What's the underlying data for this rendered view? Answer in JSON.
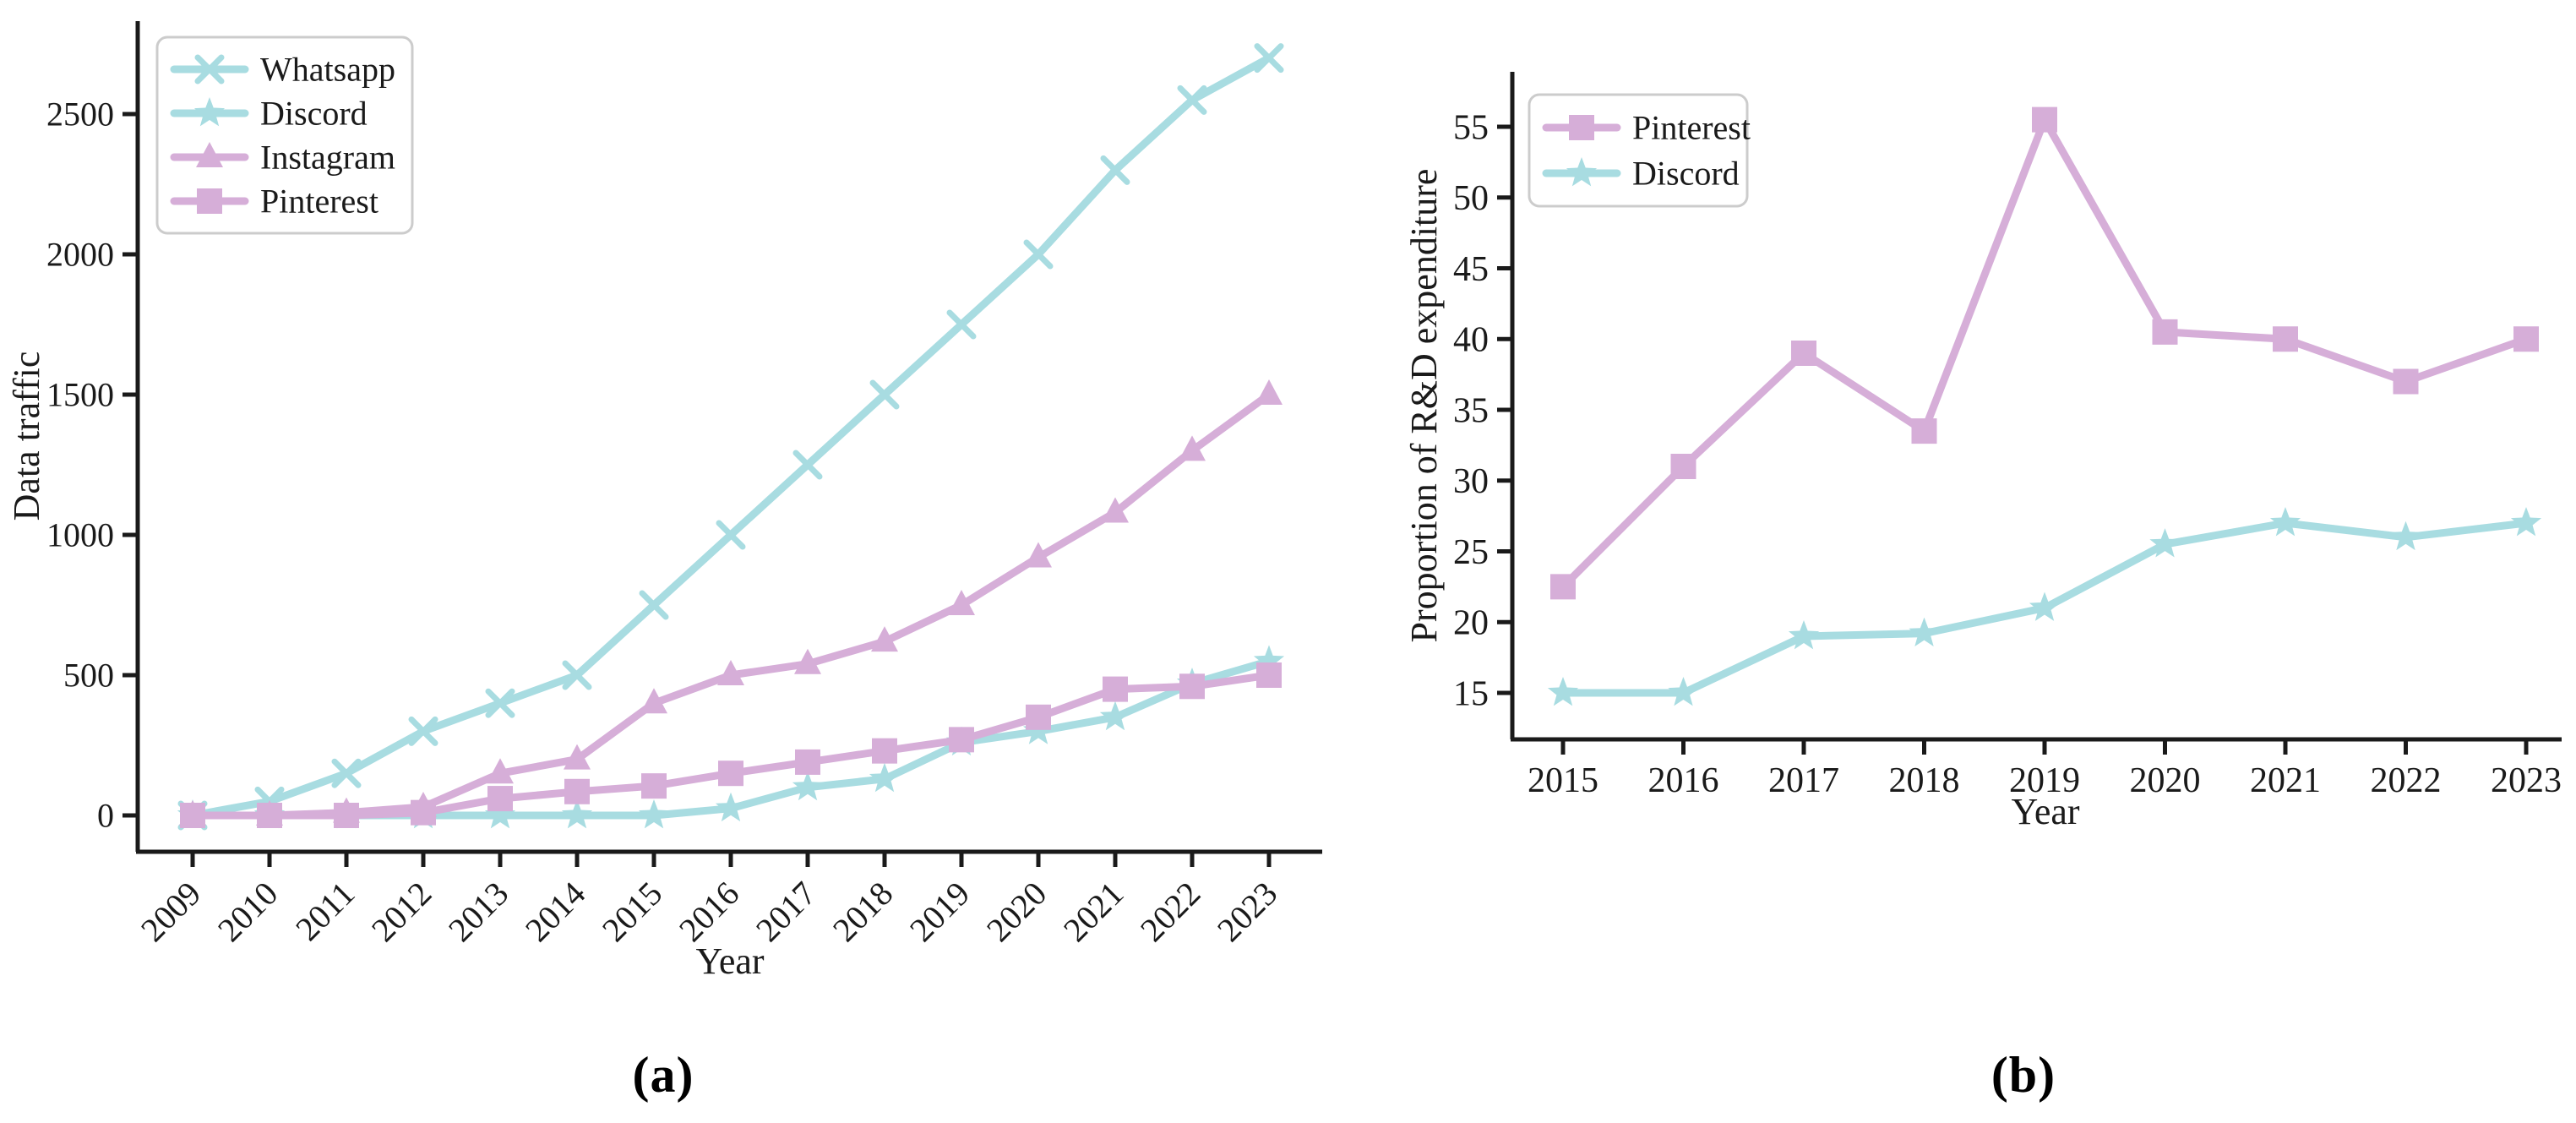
{
  "figure": {
    "background": "#ffffff"
  },
  "captions": {
    "a": "(a)",
    "b": "(b)"
  },
  "colors": {
    "cyan": "#a8dce1",
    "purple": "#d6aed8",
    "axis": "#1a1a1a",
    "text": "#1a1a1a",
    "legend_border": "#cccccc",
    "legend_fill": "#ffffff"
  },
  "chart_data": [
    {
      "id": "a",
      "type": "line",
      "title": "",
      "xlabel": "Year",
      "ylabel": "Data traffic",
      "x": [
        2009,
        2010,
        2011,
        2012,
        2013,
        2014,
        2015,
        2016,
        2017,
        2018,
        2019,
        2020,
        2021,
        2022,
        2023
      ],
      "xtick_labels": [
        "2009",
        "2010",
        "2011",
        "2012",
        "2013",
        "2014",
        "2015",
        "2016",
        "2017",
        "2018",
        "2019",
        "2020",
        "2021",
        "2022",
        "2023"
      ],
      "xtick_rotation": 45,
      "yticks": [
        0,
        500,
        1000,
        1500,
        2000,
        2500
      ],
      "ytick_labels": [
        "0",
        "500",
        "1000",
        "1500",
        "2000",
        "2500"
      ],
      "ylim": [
        -135,
        2835
      ],
      "grid": false,
      "legend_position": "upper-left",
      "series": [
        {
          "name": "Whatsapp",
          "color": "#a8dce1",
          "marker": "x",
          "values": [
            0,
            50,
            150,
            300,
            400,
            500,
            750,
            1000,
            1250,
            1500,
            1750,
            2000,
            2300,
            2550,
            2700
          ]
        },
        {
          "name": "Discord",
          "color": "#a8dce1",
          "marker": "star",
          "values": [
            0,
            0,
            0,
            0,
            0,
            0,
            0,
            25,
            100,
            130,
            260,
            300,
            350,
            470,
            550
          ]
        },
        {
          "name": "Instagram",
          "color": "#d6aed8",
          "marker": "triangle",
          "values": [
            0,
            0,
            10,
            30,
            150,
            200,
            400,
            500,
            540,
            620,
            750,
            920,
            1080,
            1300,
            1500
          ]
        },
        {
          "name": "Pinterest",
          "color": "#d6aed8",
          "marker": "square",
          "values": [
            0,
            0,
            0,
            10,
            60,
            85,
            105,
            150,
            190,
            230,
            270,
            350,
            450,
            460,
            500
          ]
        }
      ]
    },
    {
      "id": "b",
      "type": "line",
      "title": "",
      "xlabel": "Year",
      "ylabel": "Proportion of R&D expenditure",
      "x": [
        2015,
        2016,
        2017,
        2018,
        2019,
        2020,
        2021,
        2022,
        2023
      ],
      "xtick_labels": [
        "2015",
        "2016",
        "2017",
        "2018",
        "2019",
        "2020",
        "2021",
        "2022",
        "2023"
      ],
      "xtick_rotation": 0,
      "yticks": [
        15,
        20,
        25,
        30,
        35,
        40,
        45,
        50,
        55
      ],
      "ytick_labels": [
        "15",
        "20",
        "25",
        "30",
        "35",
        "40",
        "45",
        "50",
        "55"
      ],
      "ylim": [
        12.9,
        57.6
      ],
      "grid": false,
      "legend_position": "upper-left",
      "series": [
        {
          "name": "Pinterest",
          "color": "#d6aed8",
          "marker": "square",
          "values": [
            22.5,
            31,
            39,
            33.5,
            55.5,
            40.5,
            40,
            37,
            40
          ]
        },
        {
          "name": "Discord",
          "color": "#a8dce1",
          "marker": "star",
          "values": [
            15,
            15,
            19,
            19.2,
            21,
            25.5,
            27,
            26,
            27
          ]
        }
      ]
    }
  ]
}
